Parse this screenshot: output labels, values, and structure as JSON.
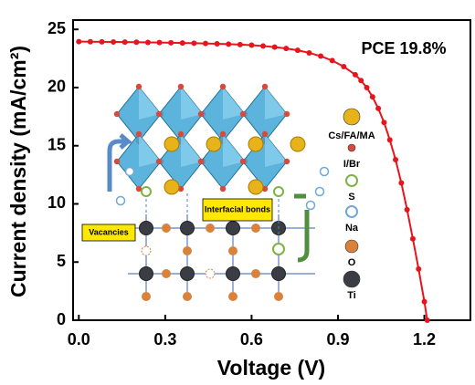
{
  "chart_data": {
    "type": "line",
    "x_label": "Voltage (V)",
    "y_label": "Current density (mA/cm²)",
    "annotation": "PCE 19.8%",
    "x": [
      0,
      0.04,
      0.08,
      0.12,
      0.16,
      0.2,
      0.24,
      0.28,
      0.32,
      0.36,
      0.4,
      0.44,
      0.48,
      0.52,
      0.56,
      0.6,
      0.64,
      0.68,
      0.72,
      0.76,
      0.8,
      0.84,
      0.88,
      0.92,
      0.96,
      0.98,
      1.0,
      1.02,
      1.04,
      1.06,
      1.08,
      1.1,
      1.12,
      1.14,
      1.16,
      1.18,
      1.2,
      1.21
    ],
    "series": [
      {
        "color": "#e8141b",
        "values": [
          23.95,
          23.94,
          23.93,
          23.92,
          23.91,
          23.9,
          23.88,
          23.87,
          23.85,
          23.83,
          23.81,
          23.79,
          23.76,
          23.73,
          23.69,
          23.64,
          23.57,
          23.48,
          23.36,
          23.2,
          22.98,
          22.7,
          22.32,
          21.8,
          21.1,
          20.6,
          20.0,
          19.2,
          18.2,
          17.0,
          15.5,
          13.8,
          11.8,
          9.5,
          7.0,
          4.4,
          1.6,
          0
        ]
      }
    ],
    "xlim": [
      -0.02,
      1.36
    ],
    "ylim": [
      0,
      25.8
    ],
    "xticks": [
      {
        "value": 0,
        "label": "0.0"
      },
      0.3,
      0.6,
      0.9,
      1.2
    ],
    "yticks": [
      0,
      5,
      10,
      15,
      20,
      25
    ],
    "inset": {
      "species": [
        {
          "name": "Cs/FA/MA",
          "color": "#e8b21a"
        },
        {
          "name": "I/Br",
          "color": "#d9483b"
        },
        {
          "name": "S",
          "color": "#7cb342"
        },
        {
          "name": "Na",
          "color": "#6fa8dc"
        },
        {
          "name": "O",
          "color": "#d9823b"
        },
        {
          "name": "Ti",
          "color": "#3a3d44"
        }
      ],
      "callouts": [
        "Interfacial bonds",
        "Vacancies"
      ]
    }
  }
}
